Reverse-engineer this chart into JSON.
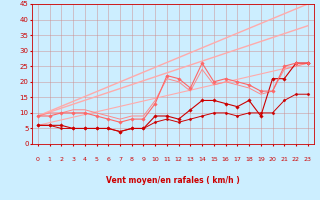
{
  "background_color": "#cceeff",
  "grid_color": "#cc8888",
  "xlim": [
    -0.5,
    23.5
  ],
  "ylim": [
    0,
    45
  ],
  "yticks": [
    0,
    5,
    10,
    15,
    20,
    25,
    30,
    35,
    40,
    45
  ],
  "xticks": [
    0,
    1,
    2,
    3,
    4,
    5,
    6,
    7,
    8,
    9,
    10,
    11,
    12,
    13,
    14,
    15,
    16,
    17,
    18,
    19,
    20,
    21,
    22,
    23
  ],
  "xlabel": "Vent moyen/en rafales ( km/h )",
  "lines": [
    {
      "x": [
        0,
        23
      ],
      "y": [
        9,
        45
      ],
      "color": "#ffaaaa",
      "lw": 1.0,
      "marker": null
    },
    {
      "x": [
        0,
        23
      ],
      "y": [
        9,
        38
      ],
      "color": "#ffaaaa",
      "lw": 1.0,
      "marker": null
    },
    {
      "x": [
        0,
        23
      ],
      "y": [
        6,
        26
      ],
      "color": "#ffaaaa",
      "lw": 0.8,
      "marker": null
    },
    {
      "x": [
        0,
        1,
        2,
        3,
        4,
        5,
        6,
        7,
        8,
        9,
        10,
        11,
        12,
        13,
        14,
        15,
        16,
        17,
        18,
        19,
        20,
        21,
        22,
        23
      ],
      "y": [
        6,
        6,
        6,
        5,
        5,
        5,
        5,
        4,
        5,
        5,
        9,
        9,
        8,
        11,
        14,
        14,
        13,
        12,
        14,
        9,
        21,
        21,
        26,
        26
      ],
      "color": "#cc0000",
      "lw": 0.8,
      "marker": "D",
      "ms": 1.8
    },
    {
      "x": [
        0,
        1,
        2,
        3,
        4,
        5,
        6,
        7,
        8,
        9,
        10,
        11,
        12,
        13,
        14,
        15,
        16,
        17,
        18,
        19,
        20,
        21,
        22,
        23
      ],
      "y": [
        9,
        9,
        10,
        10,
        10,
        9,
        8,
        7,
        8,
        8,
        13,
        22,
        21,
        18,
        26,
        20,
        21,
        20,
        19,
        17,
        17,
        25,
        26,
        26
      ],
      "color": "#ff6666",
      "lw": 0.8,
      "marker": "D",
      "ms": 1.8
    },
    {
      "x": [
        0,
        1,
        2,
        3,
        4,
        5,
        6,
        7,
        8,
        9,
        10,
        11,
        12,
        13,
        14,
        15,
        16,
        17,
        18,
        19,
        20,
        21,
        22,
        23
      ],
      "y": [
        6,
        6,
        5,
        5,
        5,
        5,
        5,
        4,
        5,
        5,
        7,
        8,
        7,
        8,
        9,
        10,
        10,
        9,
        10,
        10,
        10,
        14,
        16,
        16
      ],
      "color": "#cc0000",
      "lw": 0.7,
      "marker": "D",
      "ms": 1.5
    },
    {
      "x": [
        0,
        1,
        2,
        3,
        4,
        5,
        6,
        7,
        8,
        9,
        10,
        11,
        12,
        13,
        14,
        15,
        16,
        17,
        18,
        19,
        20,
        21,
        22,
        23
      ],
      "y": [
        9,
        10,
        10,
        11,
        11,
        10,
        9,
        8,
        9,
        9,
        14,
        21,
        20,
        17,
        24,
        19,
        20,
        19,
        18,
        16,
        17,
        24,
        25,
        26
      ],
      "color": "#ff8888",
      "lw": 0.7,
      "marker": null,
      "ms": 0
    }
  ],
  "wind_directions": [
    225,
    225,
    180,
    225,
    225,
    225,
    225,
    225,
    270,
    315,
    0,
    45,
    0,
    45,
    315,
    180,
    270,
    270,
    270,
    225,
    225,
    225,
    225,
    225
  ],
  "arrow_color": "#cc0000",
  "tick_color": "#cc0000",
  "xlabel_color": "#cc0000",
  "xlabel_fontsize": 5.5,
  "xlabel_fontweight": "bold",
  "tick_fontsize": 4.5,
  "ytick_fontsize": 5.0
}
